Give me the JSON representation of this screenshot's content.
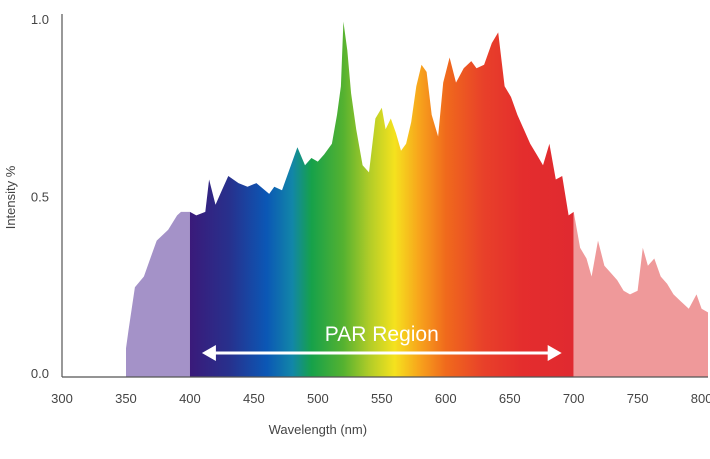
{
  "chart_data": {
    "type": "area",
    "xlabel": "Wavelength (nm)",
    "ylabel": "Intensity %",
    "xlim": [
      300,
      805
    ],
    "ylim": [
      0,
      1.0
    ],
    "xticks": [
      300,
      350,
      400,
      450,
      500,
      550,
      600,
      650,
      700,
      750,
      800
    ],
    "yticks": [
      0.0,
      0.5,
      1.0
    ],
    "ytick_labels": [
      "0.0",
      "0.5",
      "1.0"
    ],
    "grid": false,
    "x": [
      350,
      352,
      357,
      364,
      368,
      374,
      383,
      390,
      393,
      400,
      405,
      412,
      415,
      420,
      425,
      430,
      438,
      445,
      452,
      462,
      466,
      472,
      477,
      484,
      490,
      495,
      500,
      505,
      511,
      515,
      518,
      520,
      523,
      526,
      530,
      535,
      540,
      545,
      550,
      553,
      557,
      561,
      565,
      569,
      573,
      577,
      581,
      585,
      589,
      594,
      598,
      603,
      608,
      614,
      620,
      624,
      630,
      636,
      641,
      646,
      651,
      656,
      661,
      666,
      671,
      676,
      681,
      686,
      691,
      696,
      700,
      705,
      710,
      714,
      719,
      724,
      729,
      734,
      739,
      744,
      750,
      754,
      758,
      763,
      768,
      773,
      778,
      784,
      790,
      796,
      800,
      805
    ],
    "values": [
      0.08,
      0.13,
      0.25,
      0.28,
      0.32,
      0.38,
      0.41,
      0.45,
      0.46,
      0.46,
      0.45,
      0.46,
      0.55,
      0.48,
      0.52,
      0.56,
      0.54,
      0.53,
      0.54,
      0.51,
      0.53,
      0.52,
      0.57,
      0.64,
      0.59,
      0.61,
      0.6,
      0.62,
      0.65,
      0.73,
      0.81,
      0.99,
      0.91,
      0.79,
      0.69,
      0.59,
      0.57,
      0.72,
      0.75,
      0.69,
      0.72,
      0.68,
      0.63,
      0.65,
      0.71,
      0.81,
      0.87,
      0.85,
      0.73,
      0.67,
      0.82,
      0.89,
      0.82,
      0.86,
      0.88,
      0.86,
      0.87,
      0.93,
      0.96,
      0.81,
      0.78,
      0.73,
      0.69,
      0.65,
      0.62,
      0.59,
      0.65,
      0.55,
      0.56,
      0.45,
      0.46,
      0.36,
      0.33,
      0.28,
      0.38,
      0.31,
      0.29,
      0.27,
      0.24,
      0.23,
      0.24,
      0.36,
      0.31,
      0.33,
      0.28,
      0.26,
      0.23,
      0.21,
      0.19,
      0.23,
      0.19,
      0.18
    ],
    "colors": {
      "uv": "#a492c8",
      "ir": "#ef999a",
      "spectrum_stops": [
        {
          "nm": 400,
          "color": "#3a1a7a"
        },
        {
          "nm": 430,
          "color": "#28308c"
        },
        {
          "nm": 460,
          "color": "#0b57b5"
        },
        {
          "nm": 480,
          "color": "#1286a8"
        },
        {
          "nm": 495,
          "color": "#16a14a"
        },
        {
          "nm": 520,
          "color": "#55b230"
        },
        {
          "nm": 540,
          "color": "#b0cc28"
        },
        {
          "nm": 560,
          "color": "#f5e21e"
        },
        {
          "nm": 580,
          "color": "#f7a21c"
        },
        {
          "nm": 600,
          "color": "#f06a1c"
        },
        {
          "nm": 630,
          "color": "#e8402a"
        },
        {
          "nm": 660,
          "color": "#e42d2d"
        },
        {
          "nm": 700,
          "color": "#e02a30"
        }
      ],
      "axis": "#555555",
      "tick_label": "#444444",
      "arrow": "#ffffff"
    },
    "annotations": [
      {
        "text": "PAR Region",
        "from_nm": 400,
        "to_nm": 700
      }
    ]
  }
}
